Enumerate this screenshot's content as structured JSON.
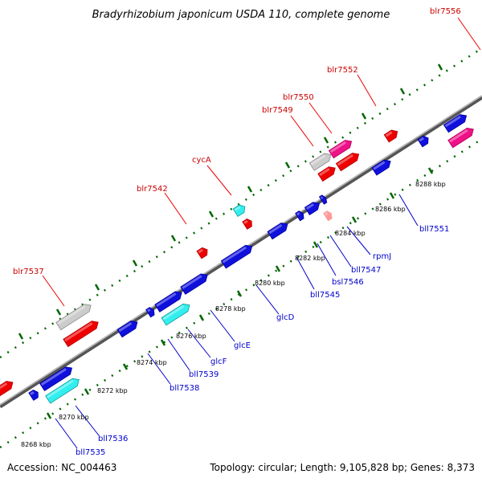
{
  "title": "Bradyrhizobium japonicum USDA 110, complete genome",
  "accession": "Accession: NC_004463",
  "summary": "Topology: circular; Length: 9,105,828 bp; Genes: 8,373",
  "colors": {
    "red": "#ee0000",
    "red_dark": "#b30000",
    "blue": "#1010dd",
    "blue_dark": "#000099",
    "cyan": "#33eeee",
    "cyan_dark": "#119999",
    "pink": "#ee1188",
    "pink_dark": "#aa0055",
    "gray": "#cccccc",
    "gray_dark": "#888888",
    "salmon": "#ff9999",
    "backbone": "#888888",
    "dots": "#006600",
    "red_text": "#cc0000",
    "blue_text": "#0000cc"
  },
  "forward_labels": [
    "blr7556",
    "blr7552",
    "blr7550",
    "blr7549",
    "cycA",
    "blr7542",
    "blr7537"
  ],
  "reverse_labels": [
    "bll7551",
    "rpmJ",
    "bll7547",
    "bsl7546",
    "bll7545",
    "glcD",
    "glcE",
    "glcF",
    "bll7539",
    "bll7538",
    "bll7536",
    "bll7535"
  ],
  "ticks": [
    "8268 kbp",
    "8270 kbp",
    "8272 kbp",
    "8274 kbp",
    "8276 kbp",
    "8278 kbp",
    "8280 kbp",
    "8282 kbp",
    "8284 kbp",
    "8286 kbp",
    "8288 kbp"
  ]
}
